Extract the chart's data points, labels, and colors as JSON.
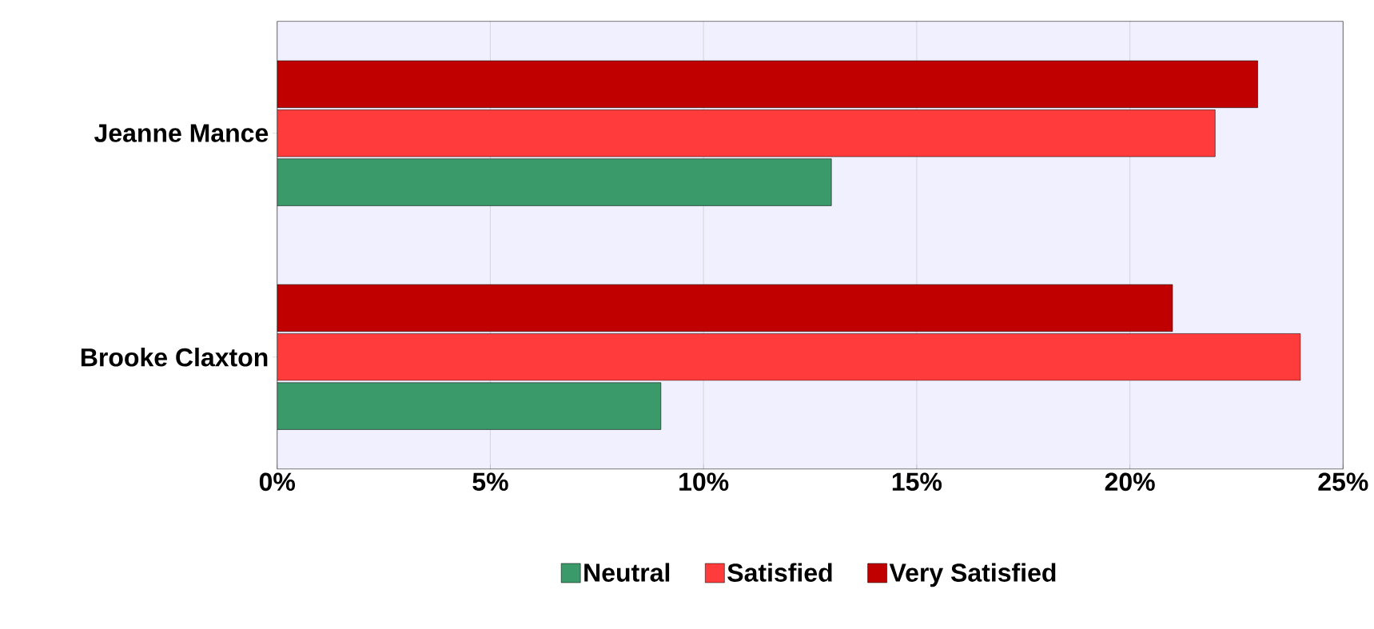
{
  "chart_data": {
    "type": "bar",
    "orientation": "horizontal",
    "categories": [
      "Jeanne Mance",
      "Brooke Claxton"
    ],
    "series": [
      {
        "name": "Neutral",
        "color": "#3a9a6a",
        "values": [
          13,
          9
        ]
      },
      {
        "name": "Satisfied",
        "color": "#ff3b3b",
        "values": [
          22,
          24
        ]
      },
      {
        "name": "Very Satisfied",
        "color": "#c00000",
        "values": [
          23,
          21
        ]
      }
    ],
    "xlim": [
      0,
      25
    ],
    "xticks": [
      {
        "value": 0,
        "label": "0%"
      },
      {
        "value": 5,
        "label": "5%"
      },
      {
        "value": 10,
        "label": "10%"
      },
      {
        "value": 15,
        "label": "15%"
      },
      {
        "value": 20,
        "label": "20%"
      },
      {
        "value": 25,
        "label": "25%"
      }
    ],
    "grid": "x",
    "legend": "bottom"
  }
}
